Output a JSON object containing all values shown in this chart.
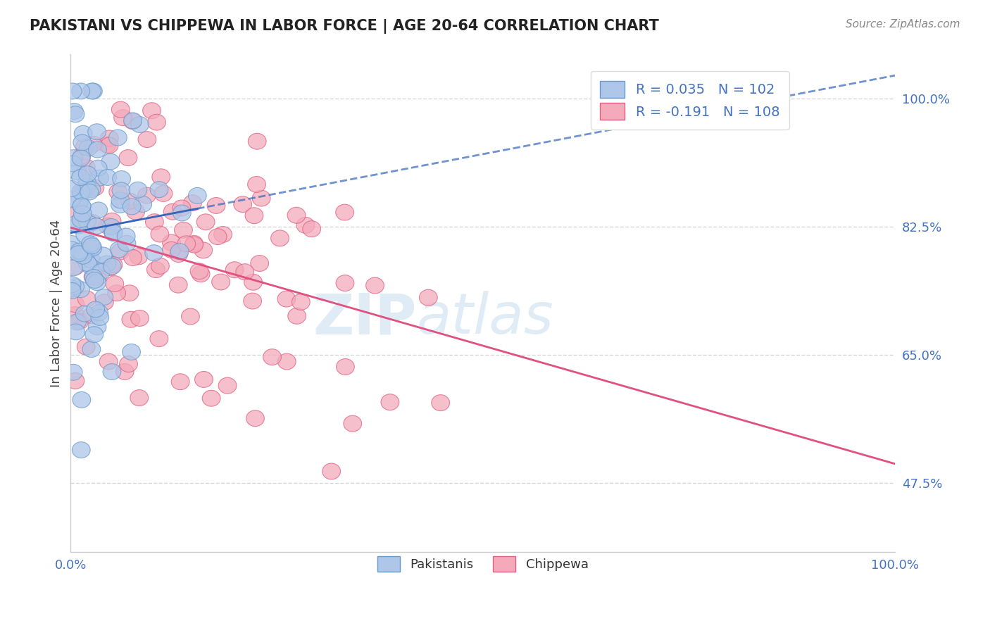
{
  "title": "PAKISTANI VS CHIPPEWA IN LABOR FORCE | AGE 20-64 CORRELATION CHART",
  "source_text": "Source: ZipAtlas.com",
  "ylabel": "In Labor Force | Age 20-64",
  "xlim": [
    0.0,
    1.0
  ],
  "ylim": [
    0.38,
    1.06
  ],
  "yticks": [
    0.475,
    0.65,
    0.825,
    1.0
  ],
  "ytick_labels": [
    "47.5%",
    "65.0%",
    "82.5%",
    "100.0%"
  ],
  "background_color": "#ffffff",
  "grid_color": "#cccccc",
  "pakistani_R": 0.035,
  "pakistani_N": 102,
  "chippewa_R": -0.191,
  "chippewa_N": 108,
  "blue_fill": "#AEC6E8",
  "blue_edge": "#6699CC",
  "pink_fill": "#F4AABB",
  "pink_edge": "#E06080",
  "blue_line_color": "#3366BB",
  "pink_line_color": "#E05080",
  "axis_label_color": "#4472C4",
  "title_color": "#222222",
  "legend_text_color": "#4472C4"
}
